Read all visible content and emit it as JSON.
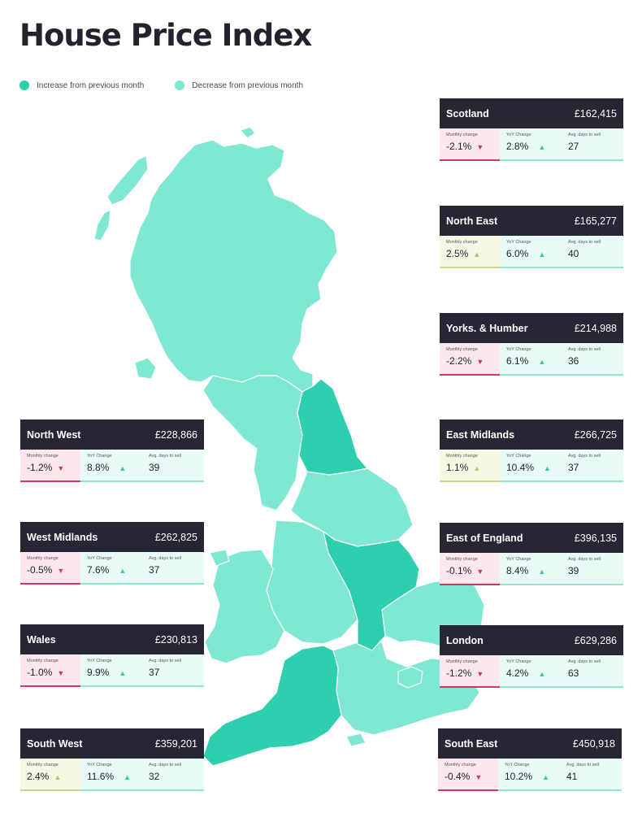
{
  "title": "House Price Index",
  "legend": [
    {
      "label": "Increase from previous month",
      "color": "#2ecfae"
    },
    {
      "label": "Decrease from previous month",
      "color": "#7fe8d2"
    }
  ],
  "colors": {
    "increase": "#2ecfae",
    "decrease": "#7fe8d2",
    "header_bg": "#272635",
    "down_arrow": "#d9345f",
    "up_arrow": "#33c8a8"
  },
  "labels": {
    "monthly": "Monthly change",
    "yoy": "YoY Change",
    "days": "Avg. days to sell"
  },
  "regions": [
    {
      "name": "Scotland",
      "price": "£162,415",
      "monthly": "-2.1%",
      "monthly_dir": "down",
      "yoy": "2.8%",
      "yoy_dir": "up",
      "days": "27"
    },
    {
      "name": "North East",
      "price": "£165,277",
      "monthly": "2.5%",
      "monthly_dir": "up",
      "yoy": "6.0%",
      "yoy_dir": "up",
      "days": "40"
    },
    {
      "name": "Yorks. & Humber",
      "price": "£214,988",
      "monthly": "-2.2%",
      "monthly_dir": "down",
      "yoy": "6.1%",
      "yoy_dir": "up",
      "days": "36"
    },
    {
      "name": "North West",
      "price": "£228,866",
      "monthly": "-1.2%",
      "monthly_dir": "down",
      "yoy": "8.8%",
      "yoy_dir": "up",
      "days": "39"
    },
    {
      "name": "East Midlands",
      "price": "£266,725",
      "monthly": "1.1%",
      "monthly_dir": "up",
      "yoy": "10.4%",
      "yoy_dir": "up",
      "days": "37"
    },
    {
      "name": "West Midlands",
      "price": "£262,825",
      "monthly": "-0.5%",
      "monthly_dir": "down",
      "yoy": "7.6%",
      "yoy_dir": "up",
      "days": "37"
    },
    {
      "name": "East of England",
      "price": "£396,135",
      "monthly": "-0.1%",
      "monthly_dir": "down",
      "yoy": "8.4%",
      "yoy_dir": "up",
      "days": "39"
    },
    {
      "name": "Wales",
      "price": "£230,813",
      "monthly": "-1.0%",
      "monthly_dir": "down",
      "yoy": "9.9%",
      "yoy_dir": "up",
      "days": "37"
    },
    {
      "name": "London",
      "price": "£629,286",
      "monthly": "-1.2%",
      "monthly_dir": "down",
      "yoy": "4.2%",
      "yoy_dir": "up",
      "days": "63"
    },
    {
      "name": "South West",
      "price": "£359,201",
      "monthly": "2.4%",
      "monthly_dir": "up",
      "yoy": "11.6%",
      "yoy_dir": "up",
      "days": "32"
    },
    {
      "name": "South East",
      "price": "£450,918",
      "monthly": "-0.4%",
      "monthly_dir": "down",
      "yoy": "10.2%",
      "yoy_dir": "up",
      "days": "41"
    }
  ]
}
